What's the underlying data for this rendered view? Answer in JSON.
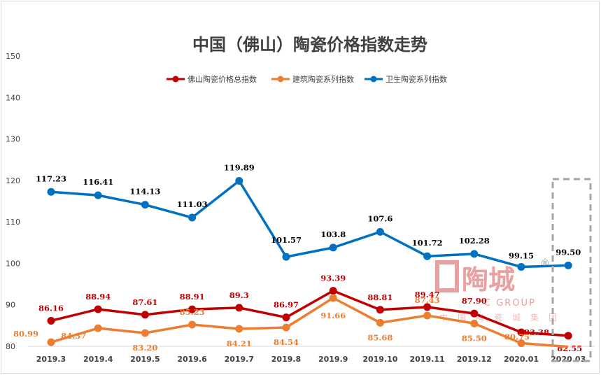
{
  "chart_data": {
    "type": "line",
    "title": "中国（佛山）陶瓷价格指数走势",
    "xlabel": "",
    "ylabel": "",
    "ylim": [
      80,
      150
    ],
    "yticks": [
      80,
      90,
      100,
      110,
      120,
      130,
      140,
      150
    ],
    "grid": false,
    "legend_position": "top",
    "categories": [
      "2019.3",
      "2019.4",
      "2019.5",
      "2019.6",
      "2019.7",
      "2019.8",
      "2019.9",
      "2019.10",
      "2019.11",
      "2019.12",
      "2020.01",
      "2020.03"
    ],
    "series": [
      {
        "name": "佛山陶瓷价格总指数",
        "color": "#c00000",
        "values": [
          86.16,
          88.94,
          87.61,
          88.91,
          89.3,
          86.97,
          93.39,
          88.81,
          89.47,
          87.9,
          83.38,
          82.55
        ],
        "labels": [
          "86.16",
          "88.94",
          "87.61",
          "88.91",
          "89.3",
          "86.97",
          "93.39",
          "88.81",
          "89.47",
          "87.90",
          "83.38",
          "82.55"
        ]
      },
      {
        "name": "建筑陶瓷系列指数",
        "color": "#ed7d31",
        "values": [
          80.99,
          84.37,
          83.2,
          85.23,
          84.21,
          84.54,
          91.66,
          85.68,
          87.43,
          85.5,
          80.75,
          79.9
        ],
        "labels": [
          "80.99",
          "84.37",
          "83.20",
          "85.23",
          "84.21",
          "84.54",
          "91.66",
          "85.68",
          "87.43",
          "85.50",
          "80.75",
          ""
        ]
      },
      {
        "name": "卫生陶瓷系列指数",
        "color": "#0070c0",
        "values": [
          117.23,
          116.41,
          114.13,
          111.03,
          119.89,
          101.57,
          103.8,
          107.6,
          101.72,
          102.28,
          99.15,
          99.5
        ],
        "labels": [
          "117.23",
          "116.41",
          "114.13",
          "111.03",
          "119.89",
          "101.57",
          "103.8",
          "107.6",
          "101.72",
          "102.28",
          "99.15",
          "99.50"
        ]
      }
    ]
  },
  "watermark": {
    "brand": "陶城",
    "sub": "C GROUP",
    "cn": "中国陶瓷城集团",
    "registered": "®",
    "color": "#e8a0a0"
  },
  "highlight": {
    "category": "2020.03",
    "border_color": "#a6a6a6"
  }
}
